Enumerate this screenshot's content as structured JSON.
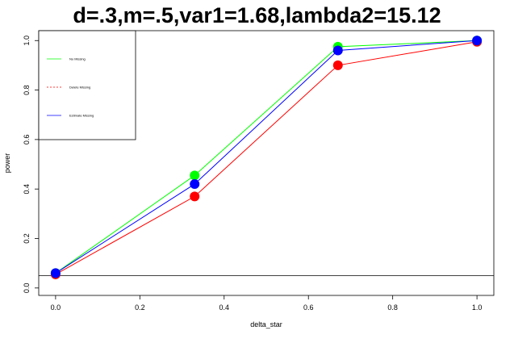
{
  "chart_data": {
    "type": "line",
    "title": "d=.3,m=.5,var1=1.68,lambda2=15.12",
    "xlabel": "delta_star",
    "ylabel": "power",
    "x": [
      0,
      0.33,
      0.67,
      1.0
    ],
    "xlim": [
      -0.04,
      1.04
    ],
    "ylim": [
      -0.03,
      1.04
    ],
    "x_ticks": [
      0.0,
      0.2,
      0.4,
      0.6,
      0.8,
      1.0
    ],
    "x_tick_labels": [
      "0.0",
      "0.2",
      "0.4",
      "0.6",
      "0.8",
      "1.0"
    ],
    "y_ticks": [
      0.0,
      0.2,
      0.4,
      0.6,
      0.8,
      1.0
    ],
    "y_tick_labels": [
      "0.0",
      "0.2",
      "0.4",
      "0.6",
      "0.8",
      "1.0"
    ],
    "reference_line_y": 0.05,
    "grid": false,
    "legend_position": "top-left",
    "series": [
      {
        "name": "No Missing",
        "color": "#00ff00",
        "line_style": "solid",
        "values": [
          0.06,
          0.455,
          0.975,
          1.0
        ]
      },
      {
        "name": "Delete Missing",
        "color": "#ff0000",
        "line_style": "dashed",
        "values": [
          0.055,
          0.37,
          0.9,
          0.995
        ]
      },
      {
        "name": "Estimate Missing",
        "color": "#0000ff",
        "line_style": "solid",
        "values": [
          0.06,
          0.42,
          0.96,
          1.0
        ]
      }
    ]
  }
}
